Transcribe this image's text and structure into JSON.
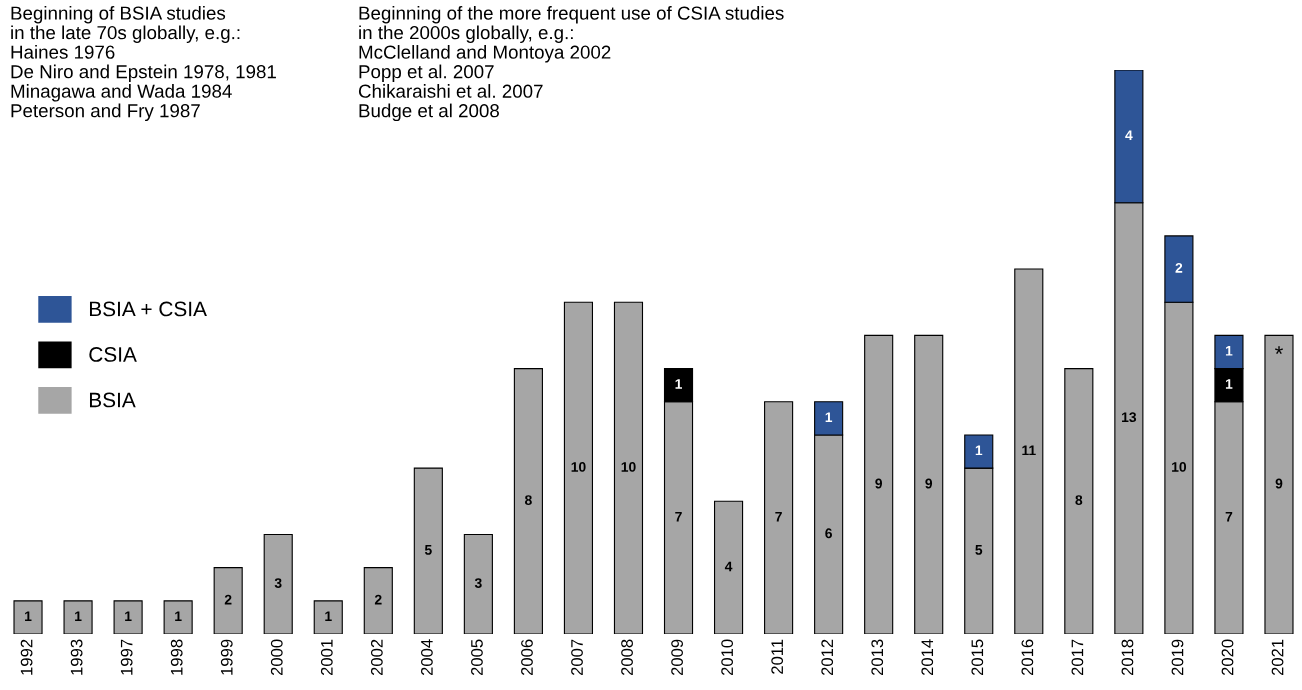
{
  "chart_data": {
    "type": "bar",
    "stacked": true,
    "tick_labels": "x",
    "legend": "left",
    "data_labels": true,
    "categories": [
      "1992",
      "1993",
      "1997",
      "1998",
      "1999",
      "2000",
      "2001",
      "2002",
      "2004",
      "2005",
      "2006",
      "2007",
      "2008",
      "2009",
      "2010",
      "2011",
      "2012",
      "2013",
      "2014",
      "2015",
      "2016",
      "2017",
      "2018",
      "2019",
      "2020",
      "2021"
    ],
    "series": [
      {
        "name": "BSIA",
        "color": "#a6a6a6",
        "values": [
          1,
          1,
          1,
          1,
          2,
          3,
          1,
          2,
          5,
          3,
          8,
          10,
          10,
          7,
          4,
          7,
          6,
          9,
          9,
          5,
          11,
          8,
          13,
          10,
          7,
          9
        ]
      },
      {
        "name": "CSIA",
        "color": "#000000",
        "values": [
          null,
          null,
          null,
          null,
          null,
          null,
          null,
          null,
          null,
          null,
          null,
          null,
          null,
          1,
          null,
          null,
          null,
          null,
          null,
          null,
          null,
          null,
          null,
          null,
          1,
          null
        ]
      },
      {
        "name": "BSIA + CSIA",
        "color": "#2e5597",
        "values": [
          null,
          null,
          null,
          null,
          null,
          null,
          null,
          null,
          null,
          null,
          null,
          null,
          null,
          null,
          null,
          null,
          1,
          null,
          null,
          1,
          null,
          null,
          4,
          2,
          1,
          null
        ]
      }
    ],
    "annotations": [
      "Beginning of BSIA studies\nin the late 70s globally, e.g.:\nHaines 1976\nDe Niro and Epstein 1978, 1981\nMinagawa and Wada 1984\nPeterson and Fry 1987",
      "Beginning of the more frequent use of CSIA studies\nin the 2000s globally, e.g.:\nMcClelland and Montoya 2002\nPopp et al. 2007\nChikaraishi et al. 2007\nBudge et al 2008",
      {
        "text": "*",
        "x": "2021",
        "y": 9
      }
    ]
  }
}
